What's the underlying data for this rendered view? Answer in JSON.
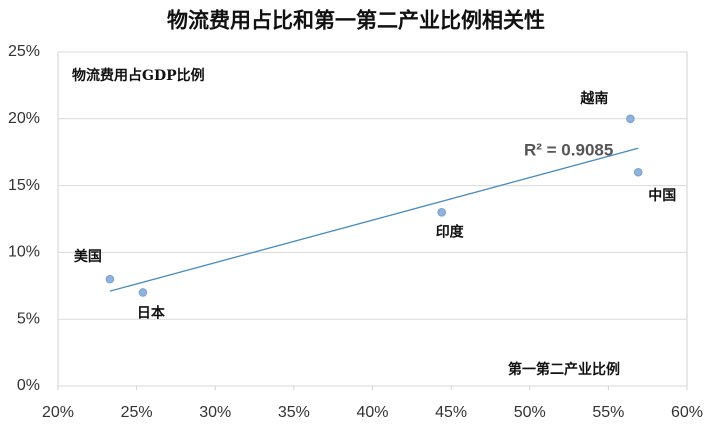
{
  "chart_data": {
    "type": "scatter",
    "title": "物流费用占比和第一第二产业比例相关性",
    "y_label": "物流费用占GDP比例",
    "x_label": "第一第二产业比例",
    "annotation": "R² = 0.9085",
    "series": [
      {
        "color": "#8fb3dc",
        "labels": [
          "美国",
          "日本",
          "印度",
          "越南",
          "中国"
        ],
        "x": [
          23.3,
          25.4,
          44.4,
          56.4,
          56.9
        ],
        "values": [
          8,
          7,
          13,
          20,
          16
        ]
      }
    ],
    "trendline": {
      "color": "#4a8bbf",
      "x": [
        23.3,
        56.9
      ],
      "values": [
        7.1,
        17.8
      ]
    },
    "xlim": [
      20,
      60
    ],
    "xticks": [
      {
        "value": 20,
        "label": "20%"
      },
      {
        "value": 25,
        "label": "25%"
      },
      {
        "value": 30,
        "label": "30%"
      },
      {
        "value": 35,
        "label": "35%"
      },
      {
        "value": 40,
        "label": "40%"
      },
      {
        "value": 45,
        "label": "45%"
      },
      {
        "value": 50,
        "label": "50%"
      },
      {
        "value": 55,
        "label": "55%"
      },
      {
        "value": 60,
        "label": "60%"
      }
    ],
    "ylim": [
      0,
      25
    ],
    "yticks": [
      {
        "value": 0,
        "label": "0%"
      },
      {
        "value": 5,
        "label": "5%"
      },
      {
        "value": 10,
        "label": "10%"
      },
      {
        "value": 15,
        "label": "15%"
      },
      {
        "value": 20,
        "label": "20%"
      },
      {
        "value": 25,
        "label": "25%"
      }
    ],
    "grid": true
  }
}
